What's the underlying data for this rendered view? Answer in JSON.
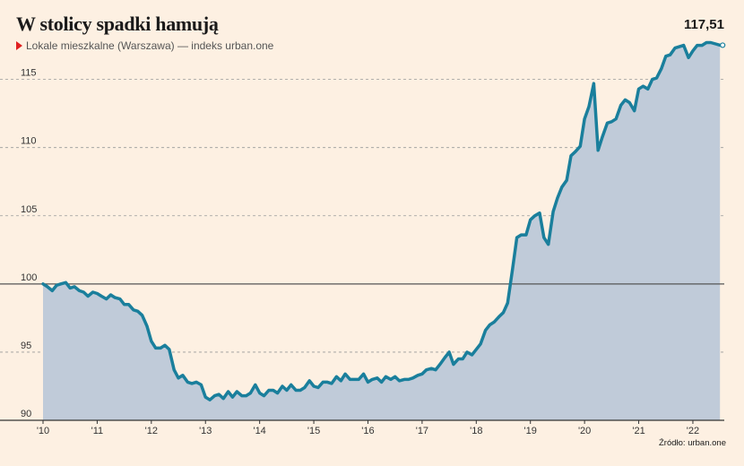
{
  "header": {
    "title": "W stolicy spadki hamują",
    "subtitle": "Lokale mieszkalne (Warszawa) — indeks urban.one",
    "last_value": "117,51"
  },
  "footer": {
    "source": "Źródło: urban.one"
  },
  "colors": {
    "background": "#fdf0e2",
    "line": "#1a7f9c",
    "area": "#c0cbd9",
    "baseline": "#555555",
    "marker": "#e02020"
  },
  "chart_data": {
    "type": "area",
    "title": "W stolicy spadki hamują",
    "subtitle": "Lokale mieszkalne (Warszawa) — indeks urban.one",
    "ylim": [
      90,
      117.8
    ],
    "yticks": [
      90,
      95,
      100,
      105,
      110,
      115
    ],
    "baseline": 100,
    "grid": true,
    "xlim": [
      2010.0,
      2022.58
    ],
    "xtick_labels": [
      "'10",
      "'11",
      "'12",
      "'13",
      "'14",
      "'15",
      "'16",
      "'17",
      "'18",
      "'19",
      "'20",
      "'21",
      "'22"
    ],
    "xtick_values": [
      2010,
      2011,
      2012,
      2013,
      2014,
      2015,
      2016,
      2017,
      2018,
      2019,
      2020,
      2021,
      2022
    ],
    "series": [
      {
        "values": [
          [
            2010.0,
            100.0
          ],
          [
            2010.08,
            99.8
          ],
          [
            2010.17,
            99.5
          ],
          [
            2010.25,
            99.9
          ],
          [
            2010.33,
            100.0
          ],
          [
            2010.42,
            100.1
          ],
          [
            2010.5,
            99.7
          ],
          [
            2010.58,
            99.8
          ],
          [
            2010.67,
            99.5
          ],
          [
            2010.75,
            99.4
          ],
          [
            2010.83,
            99.1
          ],
          [
            2010.92,
            99.4
          ],
          [
            2011.0,
            99.3
          ],
          [
            2011.08,
            99.1
          ],
          [
            2011.17,
            98.9
          ],
          [
            2011.25,
            99.2
          ],
          [
            2011.33,
            99.0
          ],
          [
            2011.42,
            98.9
          ],
          [
            2011.5,
            98.5
          ],
          [
            2011.58,
            98.5
          ],
          [
            2011.67,
            98.1
          ],
          [
            2011.75,
            98.0
          ],
          [
            2011.83,
            97.7
          ],
          [
            2011.92,
            96.9
          ],
          [
            2012.0,
            95.8
          ],
          [
            2012.08,
            95.3
          ],
          [
            2012.17,
            95.3
          ],
          [
            2012.25,
            95.5
          ],
          [
            2012.33,
            95.2
          ],
          [
            2012.42,
            93.7
          ],
          [
            2012.5,
            93.1
          ],
          [
            2012.58,
            93.3
          ],
          [
            2012.67,
            92.8
          ],
          [
            2012.75,
            92.7
          ],
          [
            2012.83,
            92.8
          ],
          [
            2012.92,
            92.6
          ],
          [
            2013.0,
            91.7
          ],
          [
            2013.08,
            91.5
          ],
          [
            2013.17,
            91.8
          ],
          [
            2013.25,
            91.9
          ],
          [
            2013.33,
            91.6
          ],
          [
            2013.42,
            92.1
          ],
          [
            2013.5,
            91.7
          ],
          [
            2013.58,
            92.1
          ],
          [
            2013.67,
            91.8
          ],
          [
            2013.75,
            91.8
          ],
          [
            2013.83,
            92.0
          ],
          [
            2013.92,
            92.6
          ],
          [
            2014.0,
            92.0
          ],
          [
            2014.08,
            91.8
          ],
          [
            2014.17,
            92.2
          ],
          [
            2014.25,
            92.2
          ],
          [
            2014.33,
            92.0
          ],
          [
            2014.42,
            92.5
          ],
          [
            2014.5,
            92.2
          ],
          [
            2014.58,
            92.6
          ],
          [
            2014.67,
            92.2
          ],
          [
            2014.75,
            92.2
          ],
          [
            2014.83,
            92.4
          ],
          [
            2014.92,
            92.9
          ],
          [
            2015.0,
            92.5
          ],
          [
            2015.08,
            92.4
          ],
          [
            2015.17,
            92.8
          ],
          [
            2015.25,
            92.8
          ],
          [
            2015.33,
            92.7
          ],
          [
            2015.42,
            93.2
          ],
          [
            2015.5,
            92.9
          ],
          [
            2015.58,
            93.4
          ],
          [
            2015.67,
            93.0
          ],
          [
            2015.75,
            93.0
          ],
          [
            2015.83,
            93.0
          ],
          [
            2015.92,
            93.4
          ],
          [
            2016.0,
            92.8
          ],
          [
            2016.08,
            93.0
          ],
          [
            2016.17,
            93.1
          ],
          [
            2016.25,
            92.8
          ],
          [
            2016.33,
            93.2
          ],
          [
            2016.42,
            93.0
          ],
          [
            2016.5,
            93.2
          ],
          [
            2016.58,
            92.9
          ],
          [
            2016.67,
            93.0
          ],
          [
            2016.75,
            93.0
          ],
          [
            2016.83,
            93.1
          ],
          [
            2016.92,
            93.3
          ],
          [
            2017.0,
            93.4
          ],
          [
            2017.08,
            93.7
          ],
          [
            2017.17,
            93.8
          ],
          [
            2017.25,
            93.7
          ],
          [
            2017.33,
            94.1
          ],
          [
            2017.42,
            94.6
          ],
          [
            2017.5,
            95.0
          ],
          [
            2017.58,
            94.1
          ],
          [
            2017.67,
            94.5
          ],
          [
            2017.75,
            94.5
          ],
          [
            2017.83,
            95.0
          ],
          [
            2017.92,
            94.8
          ],
          [
            2018.0,
            95.2
          ],
          [
            2018.08,
            95.6
          ],
          [
            2018.17,
            96.6
          ],
          [
            2018.25,
            97.0
          ],
          [
            2018.33,
            97.2
          ],
          [
            2018.42,
            97.6
          ],
          [
            2018.5,
            97.9
          ],
          [
            2018.58,
            98.6
          ],
          [
            2018.67,
            101.1
          ],
          [
            2018.75,
            103.4
          ],
          [
            2018.83,
            103.6
          ],
          [
            2018.92,
            103.6
          ],
          [
            2019.0,
            104.7
          ],
          [
            2019.08,
            105.0
          ],
          [
            2019.17,
            105.2
          ],
          [
            2019.25,
            103.4
          ],
          [
            2019.33,
            102.9
          ],
          [
            2019.42,
            105.3
          ],
          [
            2019.5,
            106.3
          ],
          [
            2019.58,
            107.1
          ],
          [
            2019.67,
            107.6
          ],
          [
            2019.75,
            109.4
          ],
          [
            2019.83,
            109.7
          ],
          [
            2019.92,
            110.1
          ],
          [
            2020.0,
            112.1
          ],
          [
            2020.08,
            113.0
          ],
          [
            2020.17,
            114.7
          ],
          [
            2020.25,
            109.8
          ],
          [
            2020.33,
            110.8
          ],
          [
            2020.42,
            111.8
          ],
          [
            2020.5,
            111.9
          ],
          [
            2020.58,
            112.1
          ],
          [
            2020.67,
            113.1
          ],
          [
            2020.75,
            113.5
          ],
          [
            2020.83,
            113.3
          ],
          [
            2020.92,
            112.7
          ],
          [
            2021.0,
            114.3
          ],
          [
            2021.08,
            114.5
          ],
          [
            2021.17,
            114.3
          ],
          [
            2021.25,
            115.0
          ],
          [
            2021.33,
            115.1
          ],
          [
            2021.42,
            115.8
          ],
          [
            2021.5,
            116.7
          ],
          [
            2021.58,
            116.8
          ],
          [
            2021.67,
            117.3
          ],
          [
            2021.75,
            117.4
          ],
          [
            2021.83,
            117.5
          ],
          [
            2021.92,
            116.6
          ],
          [
            2022.0,
            117.1
          ],
          [
            2022.08,
            117.5
          ],
          [
            2022.17,
            117.5
          ],
          [
            2022.25,
            117.7
          ],
          [
            2022.33,
            117.7
          ],
          [
            2022.42,
            117.6
          ],
          [
            2022.5,
            117.51
          ]
        ]
      }
    ]
  }
}
